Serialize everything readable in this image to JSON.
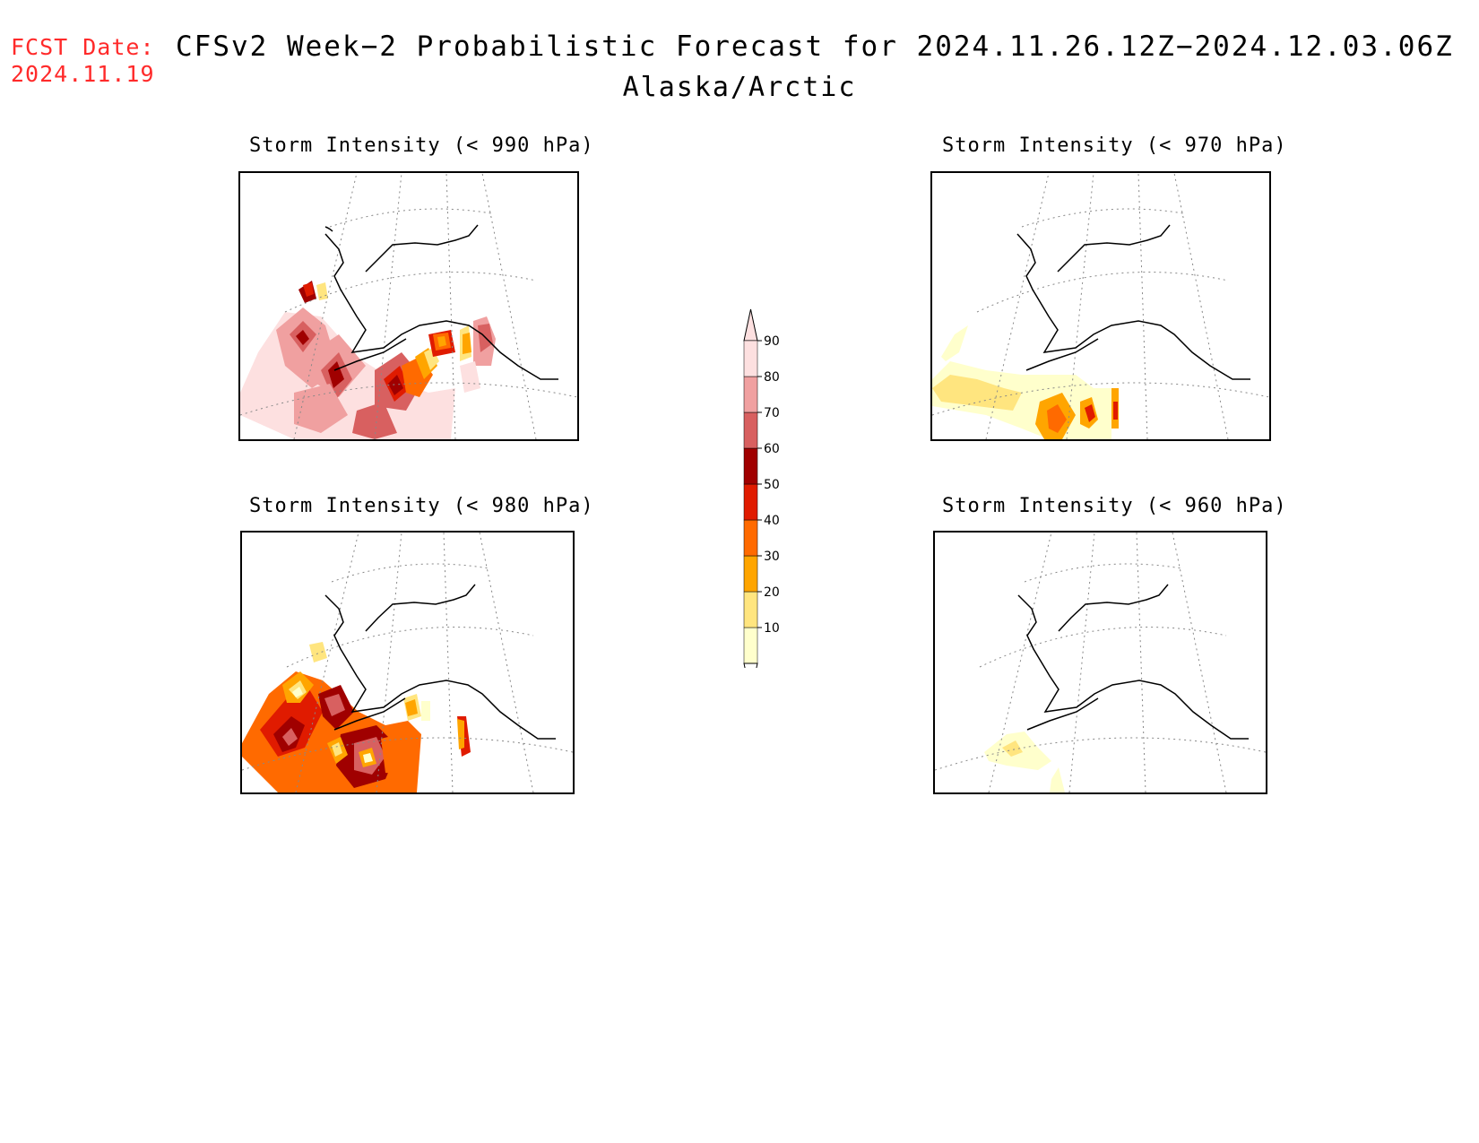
{
  "header": {
    "fcst_label": "FCST Date:",
    "fcst_date": "2024.11.19",
    "title": "CFSv2 Week−2 Probabilistic Forecast for 2024.11.26.12Z−2024.12.03.06Z",
    "subtitle": "Alaska/Arctic"
  },
  "panels": [
    {
      "title": "Storm Intensity (< 990 hPa)",
      "threshold_hpa": 990
    },
    {
      "title": "Storm Intensity (< 970 hPa)",
      "threshold_hpa": 970
    },
    {
      "title": "Storm Intensity (< 980 hPa)",
      "threshold_hpa": 980
    },
    {
      "title": "Storm Intensity (< 960 hPa)",
      "threshold_hpa": 960
    }
  ],
  "legend": {
    "levels": [
      "10",
      "20",
      "30",
      "40",
      "50",
      "60",
      "70",
      "80",
      "90"
    ],
    "colors": [
      "#ffffcc",
      "#ffe57f",
      "#ffa500",
      "#ff6a00",
      "#e01b00",
      "#a00000",
      "#d86060",
      "#f0a0a0",
      "#fde0e0"
    ]
  }
}
